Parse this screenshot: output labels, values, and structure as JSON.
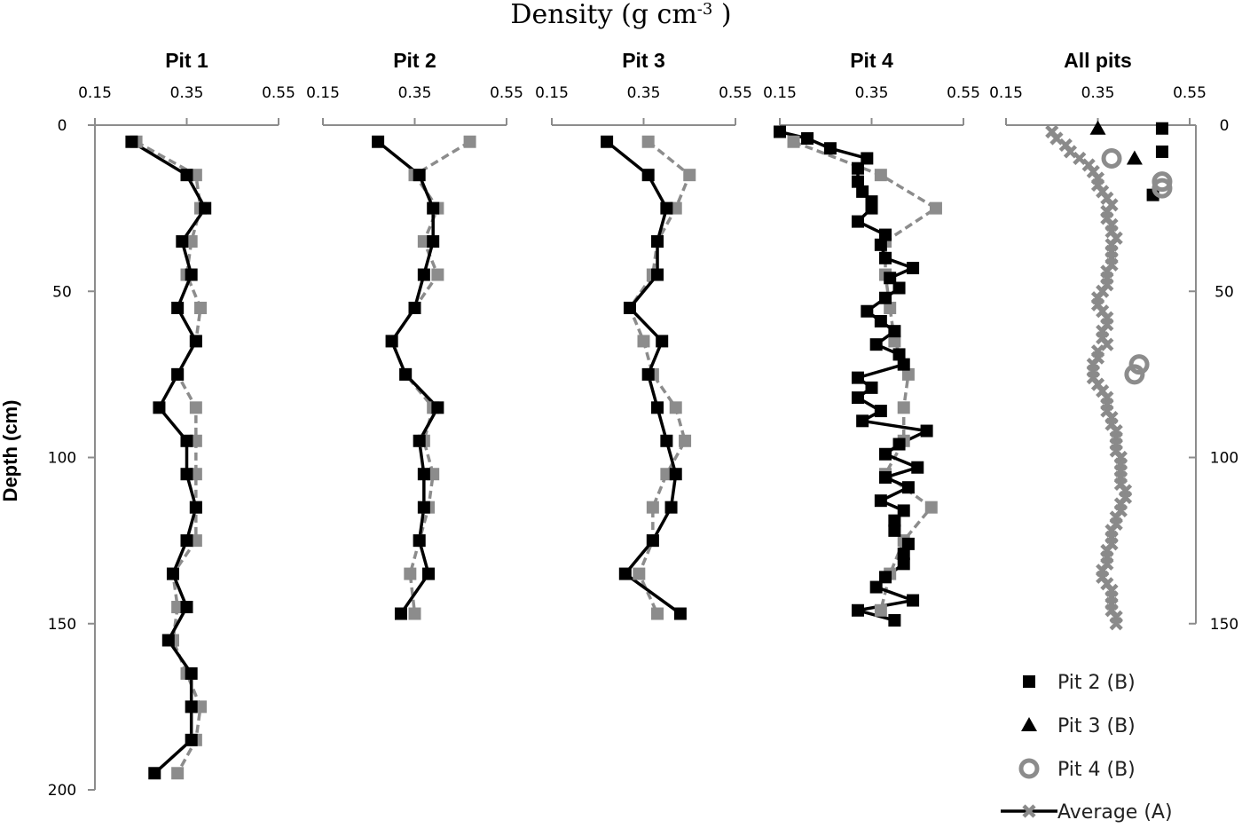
{
  "chart_data": {
    "type": "line",
    "title": "Density (g cm",
    "title_sup": "-3",
    "title_end": " )",
    "ylabel": "Depth (cm)",
    "y_ticks": [
      "0",
      "50",
      "100",
      "150",
      "200"
    ],
    "y_ticks_right": [
      "0",
      "50",
      "100",
      "150"
    ],
    "x_ticks": [
      "0.15",
      "0.35",
      "0.55"
    ],
    "xlim": [
      0.15,
      0.55
    ],
    "colors": {
      "black": "#000000",
      "gray": "#8c8c8c",
      "avg": "#8a8a8a",
      "axis": "#8c8c8c"
    },
    "panels": [
      {
        "title": "Pit 1",
        "ylim": [
          0,
          200
        ],
        "series": [
          {
            "color": "black",
            "marker": "square",
            "dash": false,
            "depth": [
              5,
              15,
              25,
              35,
              45,
              55,
              65,
              75,
              85,
              95,
              105,
              115,
              125,
              135,
              145,
              155,
              165,
              175,
              185,
              195
            ],
            "density": [
              0.23,
              0.35,
              0.39,
              0.34,
              0.36,
              0.33,
              0.37,
              0.33,
              0.29,
              0.35,
              0.35,
              0.37,
              0.35,
              0.32,
              0.35,
              0.31,
              0.36,
              0.36,
              0.36,
              0.28
            ]
          },
          {
            "color": "gray",
            "marker": "square",
            "dash": true,
            "depth": [
              5,
              15,
              25,
              35,
              45,
              55,
              65,
              75,
              85,
              95,
              105,
              115,
              125,
              135,
              145,
              155,
              165,
              175,
              185,
              195
            ],
            "density": [
              0.24,
              0.37,
              0.38,
              0.36,
              0.35,
              0.38,
              0.37,
              0.33,
              0.37,
              0.37,
              0.37,
              0.37,
              0.37,
              0.32,
              0.33,
              0.32,
              0.35,
              0.38,
              0.37,
              0.33
            ]
          }
        ]
      },
      {
        "title": "Pit 2",
        "ylim": [
          0,
          150
        ],
        "series": [
          {
            "color": "black",
            "marker": "square",
            "dash": false,
            "depth": [
              5,
              15,
              25,
              35,
              45,
              55,
              65,
              75,
              85,
              95,
              105,
              115,
              125,
              135,
              147
            ],
            "density": [
              0.27,
              0.36,
              0.39,
              0.39,
              0.37,
              0.35,
              0.3,
              0.33,
              0.4,
              0.36,
              0.37,
              0.37,
              0.36,
              0.38,
              0.32
            ]
          },
          {
            "color": "gray",
            "marker": "square",
            "dash": true,
            "depth": [
              5,
              15,
              25,
              35,
              45,
              55,
              65,
              75,
              85,
              95,
              105,
              115,
              125,
              135,
              147
            ],
            "density": [
              0.47,
              0.35,
              0.4,
              0.37,
              0.4,
              0.35,
              0.3,
              0.33,
              0.39,
              0.37,
              0.39,
              0.38,
              0.36,
              0.34,
              0.35
            ]
          }
        ]
      },
      {
        "title": "Pit 3",
        "ylim": [
          0,
          150
        ],
        "series": [
          {
            "color": "black",
            "marker": "square",
            "dash": false,
            "depth": [
              5,
              15,
              25,
              35,
              45,
              55,
              65,
              75,
              85,
              95,
              105,
              115,
              125,
              135,
              147
            ],
            "density": [
              0.27,
              0.36,
              0.4,
              0.38,
              0.38,
              0.32,
              0.39,
              0.36,
              0.38,
              0.4,
              0.42,
              0.41,
              0.37,
              0.31,
              0.43
            ]
          },
          {
            "color": "gray",
            "marker": "square",
            "dash": true,
            "depth": [
              5,
              15,
              25,
              35,
              45,
              55,
              65,
              75,
              85,
              95,
              105,
              115,
              125,
              135,
              147
            ],
            "density": [
              0.36,
              0.45,
              0.42,
              0.38,
              0.37,
              0.32,
              0.35,
              0.37,
              0.42,
              0.44,
              0.4,
              0.37,
              0.37,
              0.34,
              0.38
            ]
          }
        ]
      },
      {
        "title": "Pit 4",
        "ylim": [
          0,
          150
        ],
        "series": [
          {
            "color": "black",
            "marker": "square",
            "dash": false,
            "depth": [
              2,
              4,
              7,
              10,
              13,
              17,
              20,
              23,
              25,
              29,
              33,
              36,
              40,
              43,
              46,
              49,
              52,
              56,
              59,
              62,
              66,
              69,
              72,
              76,
              79,
              82,
              86,
              89,
              92,
              96,
              99,
              103,
              106,
              109,
              113,
              116,
              119,
              122,
              126,
              129,
              132,
              136,
              139,
              143,
              146,
              149
            ],
            "density": [
              0.15,
              0.21,
              0.26,
              0.34,
              0.32,
              0.32,
              0.33,
              0.35,
              0.35,
              0.32,
              0.38,
              0.37,
              0.38,
              0.44,
              0.39,
              0.41,
              0.38,
              0.34,
              0.37,
              0.4,
              0.36,
              0.41,
              0.42,
              0.32,
              0.35,
              0.32,
              0.37,
              0.33,
              0.47,
              0.41,
              0.38,
              0.45,
              0.38,
              0.43,
              0.37,
              0.42,
              0.4,
              0.4,
              0.43,
              0.42,
              0.42,
              0.38,
              0.36,
              0.44,
              0.32,
              0.4
            ]
          },
          {
            "color": "gray",
            "marker": "square",
            "dash": true,
            "depth": [
              5,
              15,
              25,
              35,
              45,
              55,
              65,
              75,
              85,
              95,
              105,
              115,
              125,
              135,
              146
            ],
            "density": [
              0.18,
              0.37,
              0.49,
              0.38,
              0.38,
              0.39,
              0.4,
              0.43,
              0.42,
              0.42,
              0.38,
              0.48,
              0.42,
              0.39,
              0.37
            ]
          }
        ]
      },
      {
        "title": "All pits",
        "ylim": [
          0,
          150
        ],
        "series": [
          {
            "name": "Average (A)",
            "color": "avg",
            "marker": "x",
            "dash": false,
            "depth": [
              2,
              4,
              6,
              8,
              10,
              12,
              14,
              16,
              18,
              20,
              22,
              24,
              26,
              28,
              30,
              32,
              34,
              36,
              38,
              40,
              42,
              44,
              46,
              48,
              50,
              52,
              54,
              56,
              58,
              60,
              62,
              64,
              66,
              68,
              70,
              72,
              74,
              76,
              78,
              80,
              82,
              84,
              86,
              88,
              90,
              92,
              94,
              96,
              98,
              100,
              102,
              104,
              106,
              108,
              110,
              112,
              114,
              116,
              118,
              120,
              122,
              124,
              126,
              128,
              130,
              132,
              134,
              136,
              138,
              140,
              142,
              144,
              146,
              148,
              150
            ],
            "density": [
              0.25,
              0.26,
              0.28,
              0.29,
              0.31,
              0.33,
              0.34,
              0.35,
              0.35,
              0.36,
              0.37,
              0.38,
              0.37,
              0.37,
              0.38,
              0.38,
              0.39,
              0.38,
              0.38,
              0.38,
              0.38,
              0.37,
              0.37,
              0.37,
              0.36,
              0.35,
              0.35,
              0.36,
              0.37,
              0.37,
              0.36,
              0.36,
              0.37,
              0.35,
              0.35,
              0.34,
              0.34,
              0.34,
              0.35,
              0.36,
              0.37,
              0.37,
              0.37,
              0.38,
              0.38,
              0.39,
              0.39,
              0.39,
              0.39,
              0.4,
              0.4,
              0.4,
              0.4,
              0.4,
              0.41,
              0.41,
              0.4,
              0.4,
              0.39,
              0.39,
              0.38,
              0.38,
              0.38,
              0.37,
              0.37,
              0.37,
              0.36,
              0.36,
              0.37,
              0.38,
              0.38,
              0.38,
              0.38,
              0.39,
              0.39
            ]
          },
          {
            "name": "Pit 2 (B)",
            "color": "black",
            "marker": "square",
            "dash": null,
            "depth": [
              1,
              8,
              21
            ],
            "density": [
              0.49,
              0.49,
              0.47
            ]
          },
          {
            "name": "Pit 3 (B)",
            "color": "black",
            "marker": "triangle",
            "dash": null,
            "depth": [
              1,
              10
            ],
            "density": [
              0.35,
              0.43
            ]
          },
          {
            "name": "Pit 4 (B)",
            "color": "gray",
            "marker": "circle",
            "dash": null,
            "depth": [
              10,
              17,
              19,
              72,
              75
            ],
            "density": [
              0.38,
              0.49,
              0.49,
              0.44,
              0.43
            ]
          }
        ]
      }
    ],
    "legend": [
      {
        "label": "Pit 2 (B)",
        "color": "black",
        "marker": "square"
      },
      {
        "label": "Pit 3 (B)",
        "color": "black",
        "marker": "triangle"
      },
      {
        "label": "Pit 4 (B)",
        "color": "gray",
        "marker": "circle"
      },
      {
        "label": "Average (A)",
        "color": "avg",
        "marker": "x-line"
      }
    ]
  }
}
